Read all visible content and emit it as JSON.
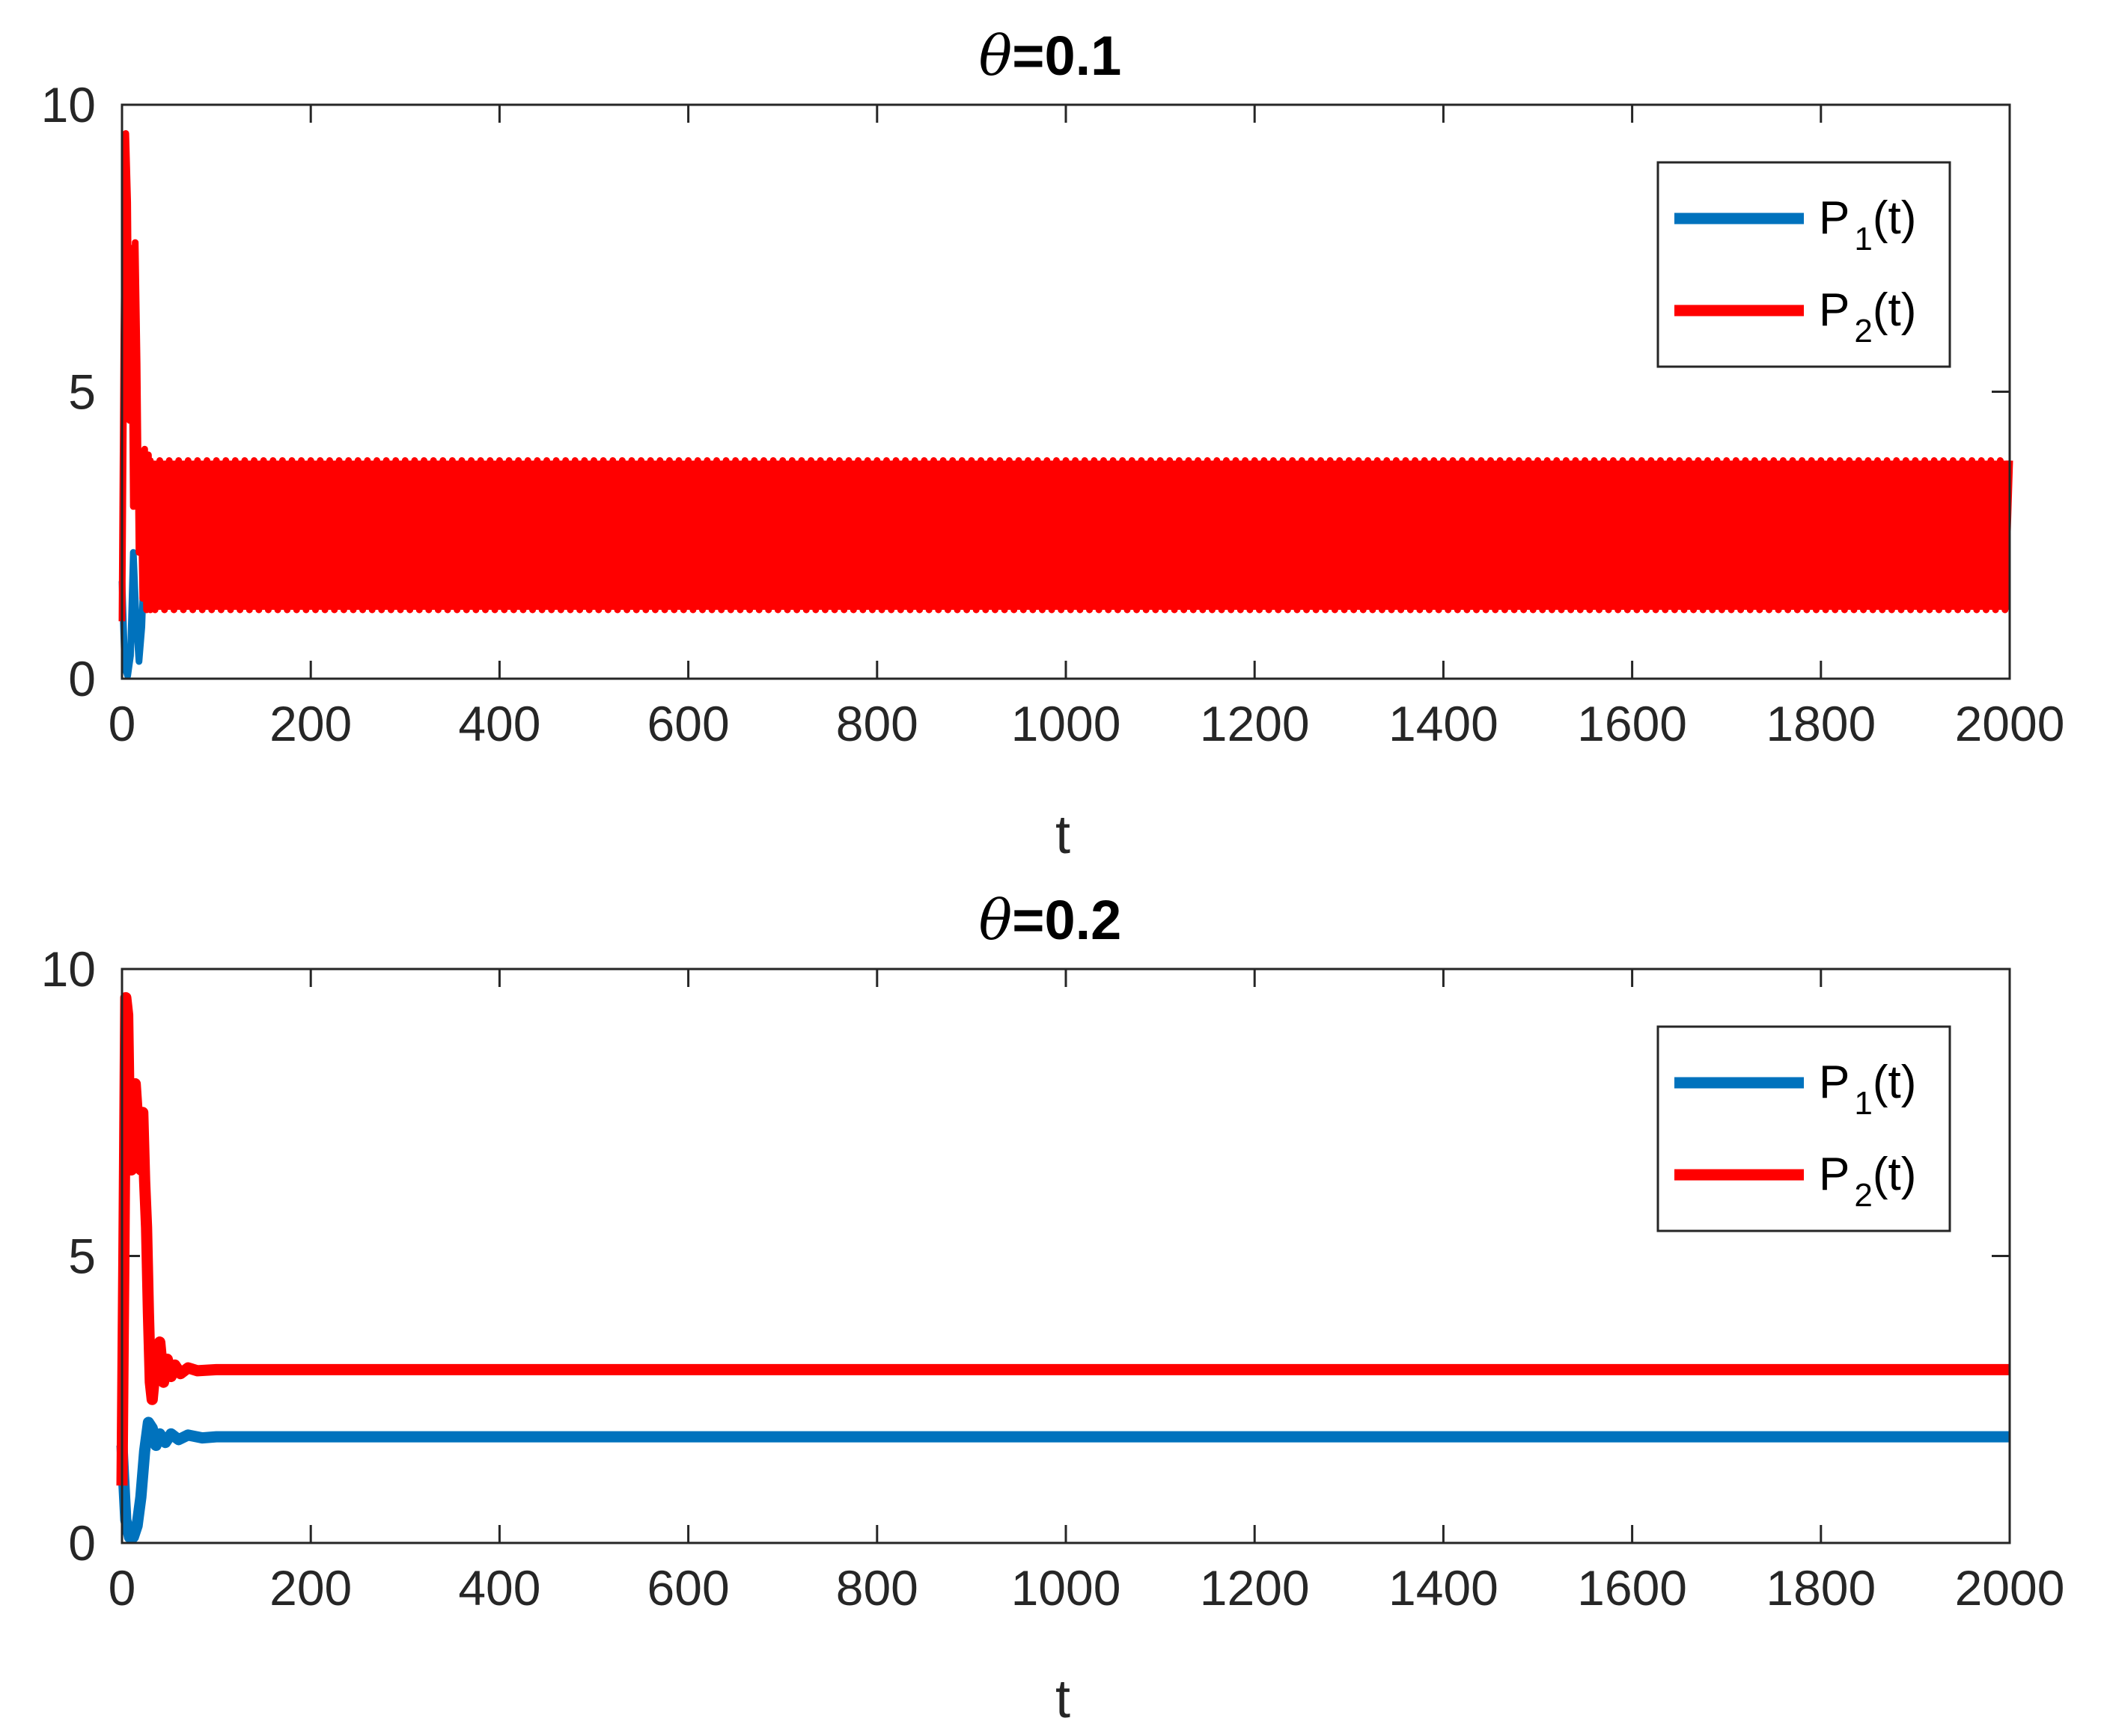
{
  "chart_data": [
    {
      "type": "line",
      "title_symbol": "θ",
      "title_value": "=0.1",
      "xlabel": "t",
      "ylabel": "",
      "xlim": [
        0,
        2000
      ],
      "ylim": [
        0,
        10
      ],
      "x_ticks": [
        "0",
        "200",
        "400",
        "600",
        "800",
        "1000",
        "1200",
        "1400",
        "1600",
        "1800",
        "2000"
      ],
      "y_ticks": [
        "0",
        "5",
        "10"
      ],
      "grid": false,
      "legend_position": "top-right",
      "series": [
        {
          "name_main": "P",
          "name_sub": "1",
          "name_tail": "(t)",
          "color": "#0072BD",
          "behavior": "oscillating",
          "transient": [
            [
              0,
              1.7
            ],
            [
              3,
              0.2
            ],
            [
              6,
              0.05
            ],
            [
              9,
              0.4
            ],
            [
              12,
              2.2
            ],
            [
              15,
              1.0
            ],
            [
              18,
              0.3
            ],
            [
              21,
              0.9
            ],
            [
              24,
              2.3
            ],
            [
              28,
              1.6
            ],
            [
              32,
              1.3
            ]
          ],
          "osc_start": 32,
          "osc_low": 1.3,
          "osc_high": 3.6,
          "osc_period": 10,
          "x": [
            32,
            2000
          ],
          "y": [
            2.45,
            2.45
          ]
        },
        {
          "name_main": "P",
          "name_sub": "2",
          "name_tail": "(t)",
          "color": "#FF0000",
          "behavior": "oscillating",
          "transient": [
            [
              0,
              1.0
            ],
            [
              2,
              6.0
            ],
            [
              4,
              9.5
            ],
            [
              6,
              8.3
            ],
            [
              8,
              4.5
            ],
            [
              10,
              7.5
            ],
            [
              12,
              3.0
            ],
            [
              14,
              7.6
            ],
            [
              16,
              5.5
            ],
            [
              18,
              2.2
            ],
            [
              20,
              3.5
            ],
            [
              22,
              1.4
            ],
            [
              24,
              4.0
            ],
            [
              26,
              1.2
            ],
            [
              28,
              3.9
            ],
            [
              30,
              1.2
            ]
          ],
          "osc_start": 30,
          "osc_low": 1.2,
          "osc_high": 3.8,
          "osc_period": 10,
          "x": [
            30,
            2000
          ],
          "y": [
            2.5,
            2.5
          ]
        }
      ]
    },
    {
      "type": "line",
      "title_symbol": "θ",
      "title_value": "=0.2",
      "xlabel": "t",
      "ylabel": "",
      "xlim": [
        0,
        2000
      ],
      "ylim": [
        0,
        10
      ],
      "x_ticks": [
        "0",
        "200",
        "400",
        "600",
        "800",
        "1000",
        "1200",
        "1400",
        "1600",
        "1800",
        "2000"
      ],
      "y_ticks": [
        "0",
        "5",
        "10"
      ],
      "grid": false,
      "legend_position": "top-right",
      "series": [
        {
          "name_main": "P",
          "name_sub": "1",
          "name_tail": "(t)",
          "color": "#0072BD",
          "behavior": "steady",
          "transient": [
            [
              0,
              1.7
            ],
            [
              4,
              0.4
            ],
            [
              8,
              0.1
            ],
            [
              12,
              0.1
            ],
            [
              16,
              0.3
            ],
            [
              20,
              0.8
            ],
            [
              24,
              1.6
            ],
            [
              28,
              2.1
            ],
            [
              32,
              2.0
            ],
            [
              36,
              1.7
            ],
            [
              40,
              1.9
            ],
            [
              46,
              1.75
            ],
            [
              52,
              1.9
            ],
            [
              60,
              1.8
            ],
            [
              70,
              1.88
            ],
            [
              85,
              1.83
            ],
            [
              100,
              1.85
            ]
          ],
          "x": [
            100,
            2000
          ],
          "y": [
            1.85,
            1.85
          ]
        },
        {
          "name_main": "P",
          "name_sub": "2",
          "name_tail": "(t)",
          "color": "#FF0000",
          "behavior": "steady",
          "transient": [
            [
              0,
              1.0
            ],
            [
              2,
              5.0
            ],
            [
              4,
              9.5
            ],
            [
              6,
              9.2
            ],
            [
              8,
              7.0
            ],
            [
              10,
              6.5
            ],
            [
              12,
              7.0
            ],
            [
              14,
              8.0
            ],
            [
              16,
              7.5
            ],
            [
              18,
              6.8
            ],
            [
              20,
              6.5
            ],
            [
              22,
              7.5
            ],
            [
              24,
              6.3
            ],
            [
              26,
              5.5
            ],
            [
              28,
              4.0
            ],
            [
              30,
              2.8
            ],
            [
              32,
              2.5
            ],
            [
              36,
              3.2
            ],
            [
              40,
              3.5
            ],
            [
              44,
              2.8
            ],
            [
              48,
              3.2
            ],
            [
              52,
              2.9
            ],
            [
              56,
              3.1
            ],
            [
              62,
              2.95
            ],
            [
              70,
              3.05
            ],
            [
              80,
              3.0
            ],
            [
              100,
              3.02
            ]
          ],
          "x": [
            100,
            2000
          ],
          "y": [
            3.02,
            3.02
          ]
        }
      ]
    }
  ]
}
